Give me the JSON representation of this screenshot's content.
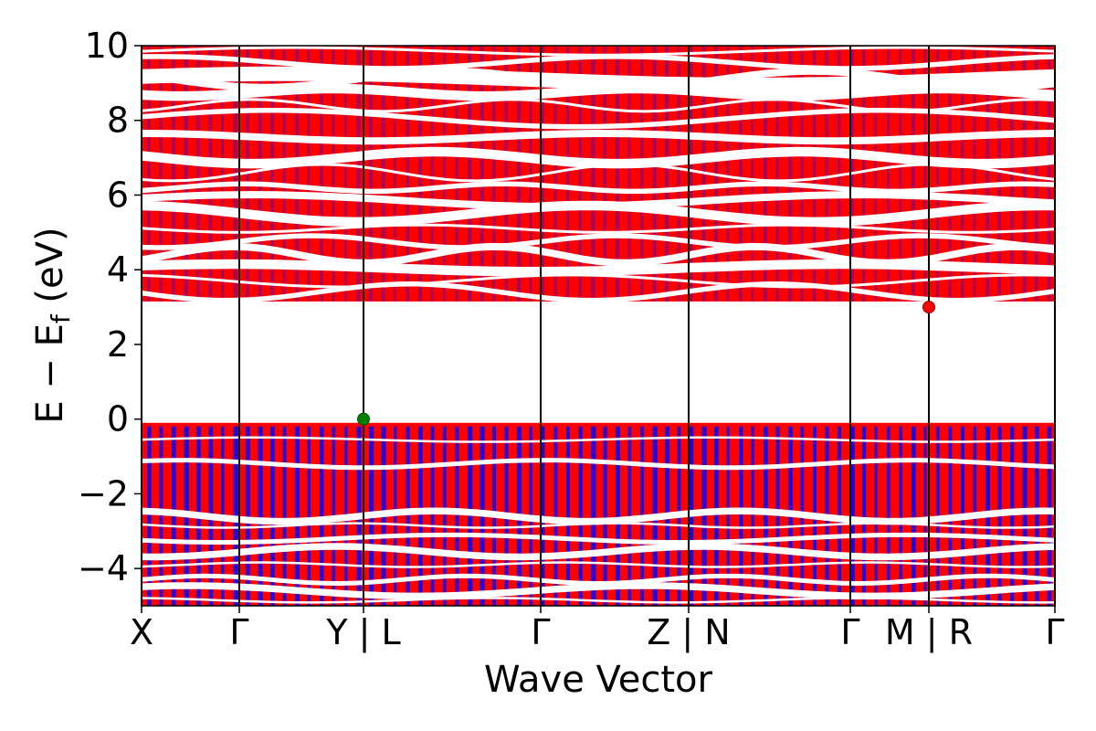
{
  "chart_data": {
    "type": "line",
    "title": "",
    "xlabel": "Wave Vector",
    "ylabel": "E − E",
    "ylabel_subscript": "f",
    "ylabel_unit": "(eV)",
    "ylim": [
      -5,
      10
    ],
    "yticks": [
      -4,
      -2,
      0,
      2,
      4,
      6,
      8,
      10
    ],
    "ytick_labels": [
      "−4",
      "−2",
      "0",
      "2",
      "4",
      "6",
      "8",
      "10"
    ],
    "kpath_positions": [
      0,
      0.107,
      0.243,
      0.437,
      0.599,
      0.776,
      0.862,
      1.0
    ],
    "kpath_labels": [
      "X",
      "Γ",
      "Y | L",
      "Γ",
      "Z | N",
      "Γ",
      "M | R",
      "Γ"
    ],
    "grid": false,
    "legend": "none",
    "colors": {
      "spin_up": "#ff0000",
      "spin_down": "#0000ff",
      "vbm": "#008000",
      "cbm": "#ff0000",
      "frame": "#000000"
    },
    "vbm_point": {
      "k": 0.243,
      "energy": 0.0
    },
    "cbm_point": {
      "k": 0.862,
      "energy": 3.0
    },
    "valence_band_region": [
      -5.0,
      -0.1
    ],
    "conduction_band_region": [
      3.15,
      10.0
    ]
  }
}
